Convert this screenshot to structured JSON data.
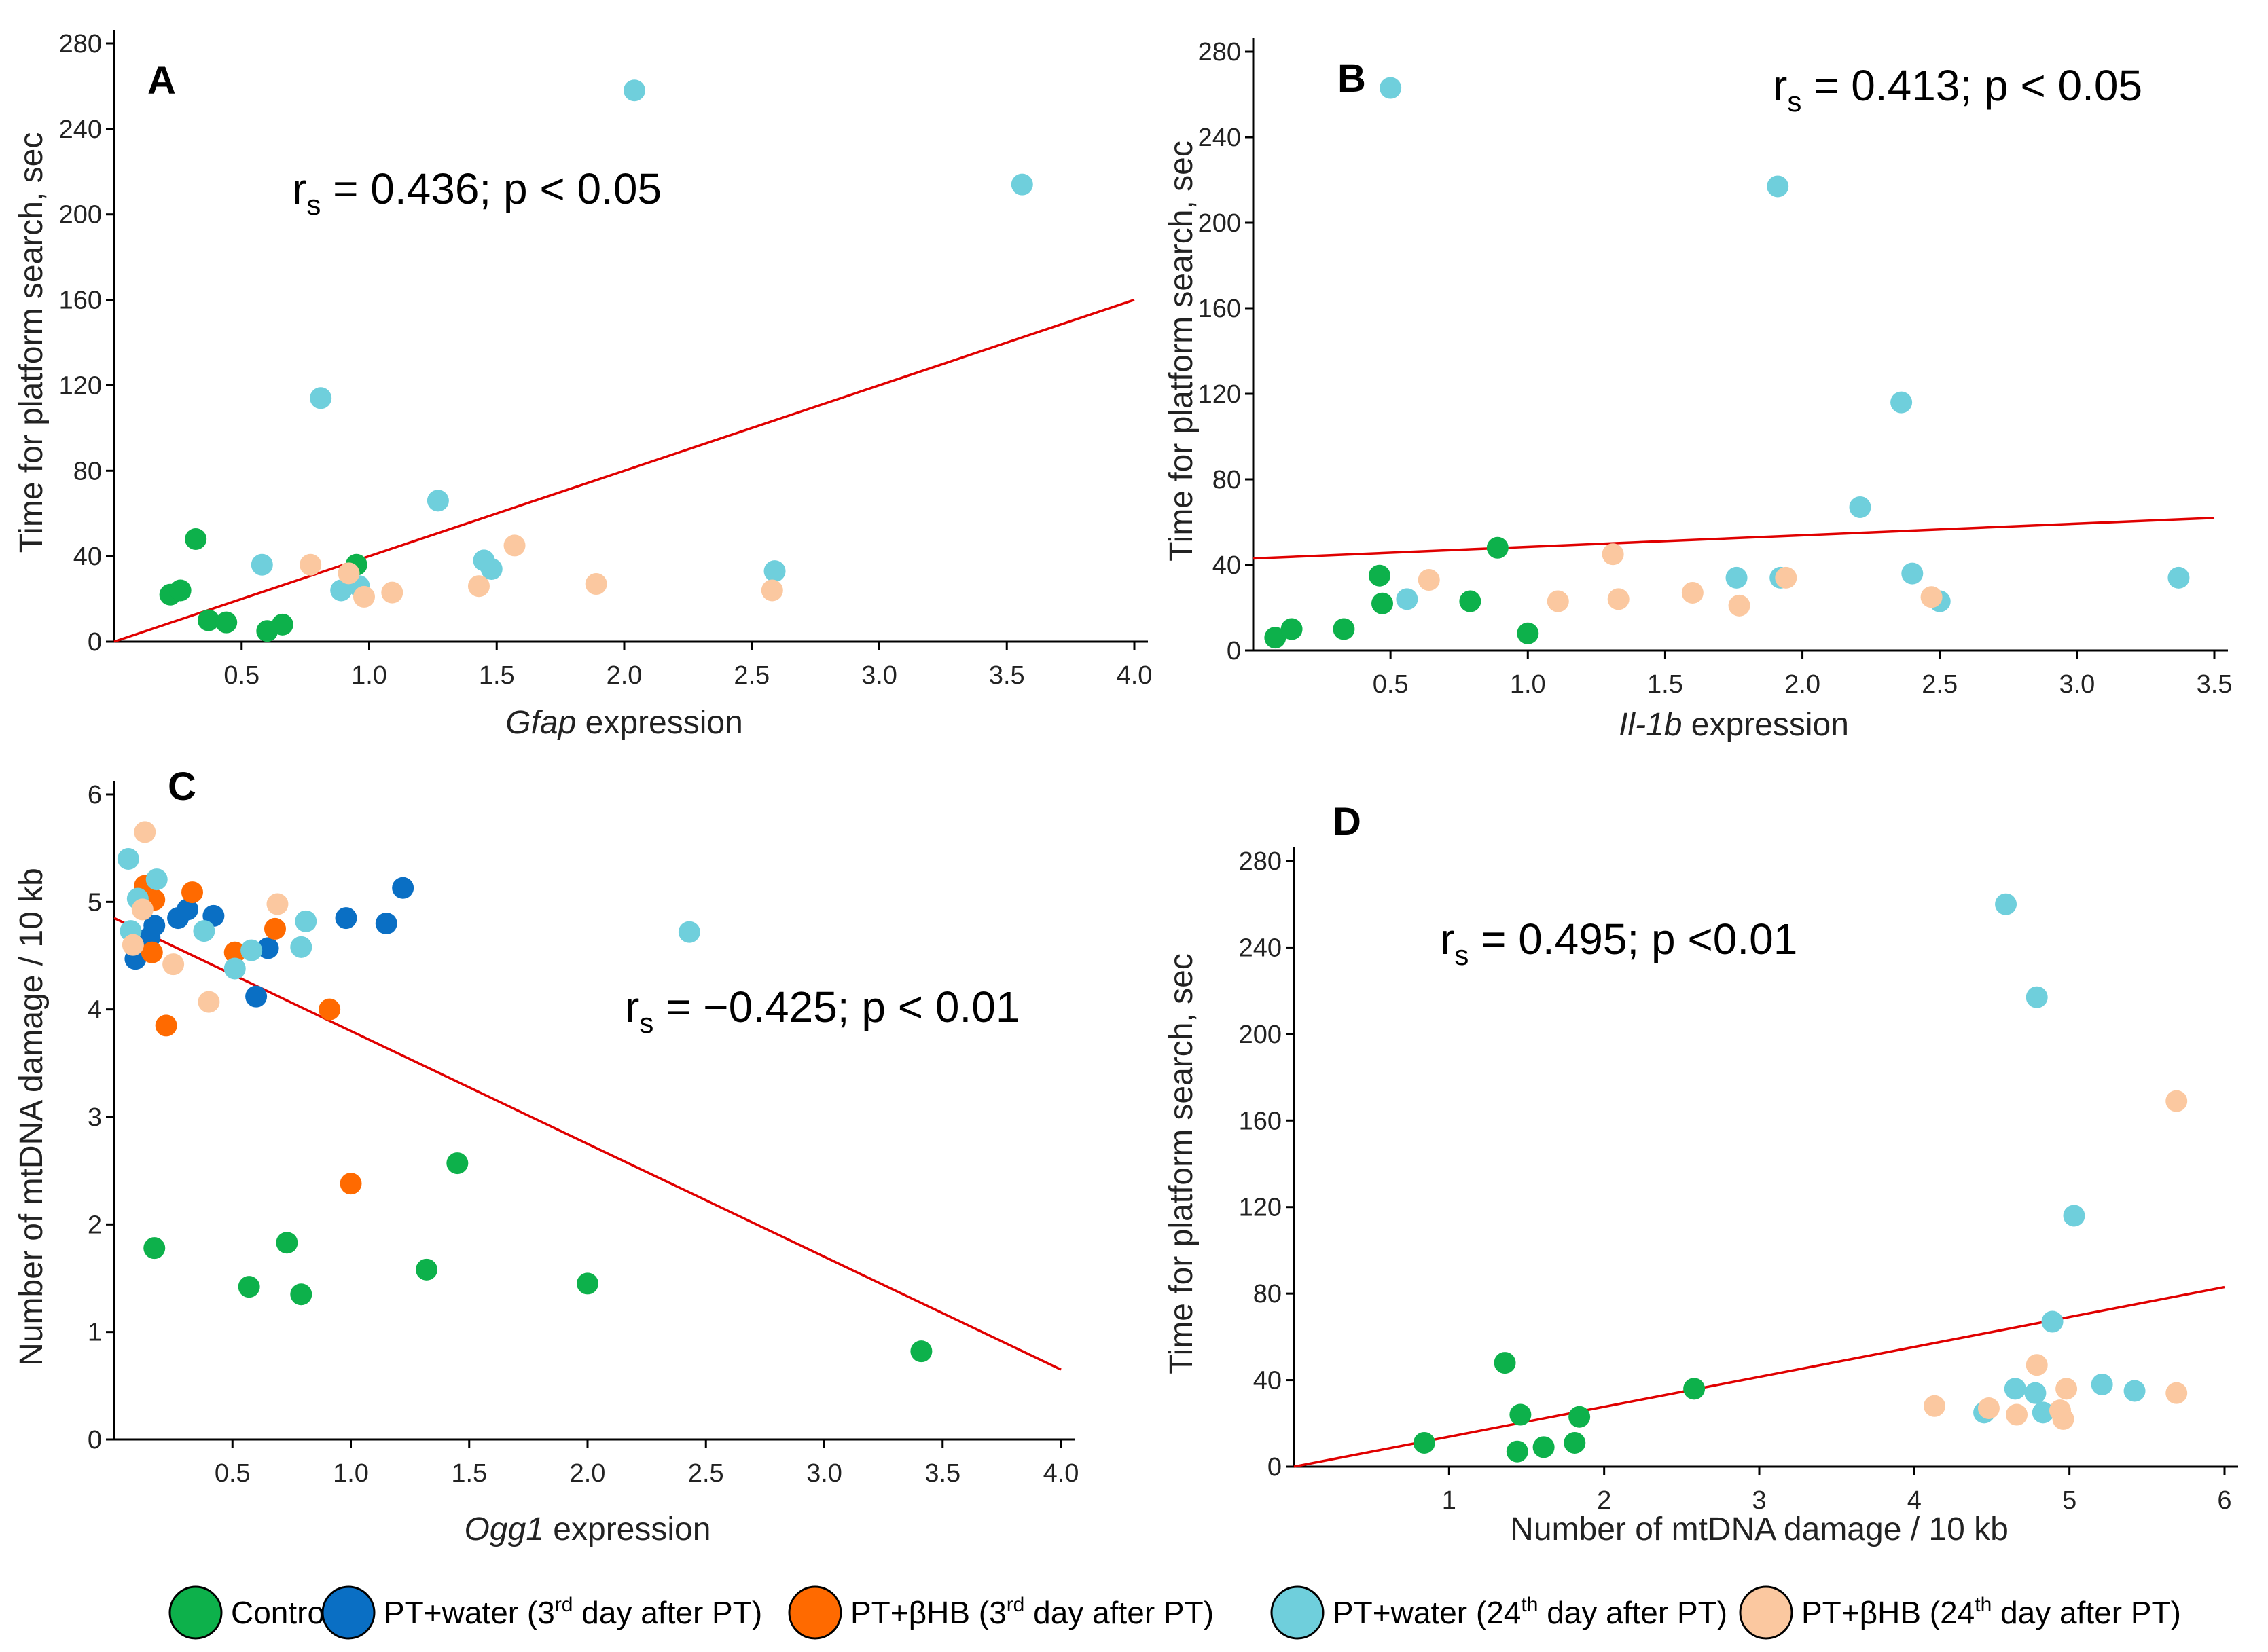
{
  "colors": {
    "Control": "#0db14b",
    "PT3": "#0a6fc4",
    "BHB3": "#ff6a00",
    "PT24": "#6fcfdc",
    "BHB24": "#fbc8a0",
    "trend": "#e00000"
  },
  "legend": [
    {
      "group": "Control",
      "label": "Control",
      "sup": "",
      "suffix": ""
    },
    {
      "group": "PT3",
      "label": "PT+water (3",
      "sup": "rd",
      "suffix": " day after PT)"
    },
    {
      "group": "BHB3",
      "label": "PT+βHB (3",
      "sup": "rd",
      "suffix": " day after PT)"
    },
    {
      "group": "PT24",
      "label": "PT+water (24",
      "sup": "th",
      "suffix": " day after PT)"
    },
    {
      "group": "BHB24",
      "label": "PT+βHB (24",
      "sup": "th",
      "suffix": " day after PT)"
    }
  ],
  "chart_data": [
    {
      "panel": "A",
      "type": "scatter",
      "xlabel_italic": "Gfap",
      "xlabel_rest": " expression",
      "ylabel": "Time for platform search, sec",
      "xlim": [
        0,
        4.0
      ],
      "ylim": [
        0,
        280
      ],
      "xticks": [
        "0.5",
        "1.0",
        "1.5",
        "2.0",
        "2.5",
        "3.0",
        "3.5",
        "4.0"
      ],
      "xtick_values": [
        0.5,
        1.0,
        1.5,
        2.0,
        2.5,
        3.0,
        3.5,
        4.0
      ],
      "yticks": [
        0,
        40,
        80,
        120,
        160,
        200,
        240,
        280
      ],
      "stat": {
        "pre": "r",
        "sub": "s",
        "post": " = 0.436; p < 0.05"
      },
      "trend": [
        [
          0,
          0
        ],
        [
          4.0,
          160
        ]
      ],
      "points": [
        {
          "g": "Control",
          "x": 0.22,
          "y": 22
        },
        {
          "g": "Control",
          "x": 0.26,
          "y": 24
        },
        {
          "g": "Control",
          "x": 0.32,
          "y": 48
        },
        {
          "g": "Control",
          "x": 0.37,
          "y": 10
        },
        {
          "g": "Control",
          "x": 0.44,
          "y": 9
        },
        {
          "g": "Control",
          "x": 0.6,
          "y": 5
        },
        {
          "g": "Control",
          "x": 0.66,
          "y": 8
        },
        {
          "g": "Control",
          "x": 0.95,
          "y": 36
        },
        {
          "g": "PT24",
          "x": 0.58,
          "y": 36
        },
        {
          "g": "PT24",
          "x": 0.81,
          "y": 114
        },
        {
          "g": "PT24",
          "x": 0.89,
          "y": 24
        },
        {
          "g": "PT24",
          "x": 0.96,
          "y": 26
        },
        {
          "g": "PT24",
          "x": 1.27,
          "y": 66
        },
        {
          "g": "PT24",
          "x": 1.45,
          "y": 38
        },
        {
          "g": "PT24",
          "x": 1.48,
          "y": 34
        },
        {
          "g": "PT24",
          "x": 2.04,
          "y": 258
        },
        {
          "g": "PT24",
          "x": 2.59,
          "y": 33
        },
        {
          "g": "PT24",
          "x": 3.56,
          "y": 214
        },
        {
          "g": "BHB24",
          "x": 0.77,
          "y": 36
        },
        {
          "g": "BHB24",
          "x": 0.92,
          "y": 32
        },
        {
          "g": "BHB24",
          "x": 0.98,
          "y": 21
        },
        {
          "g": "BHB24",
          "x": 1.09,
          "y": 23
        },
        {
          "g": "BHB24",
          "x": 1.43,
          "y": 26
        },
        {
          "g": "BHB24",
          "x": 1.57,
          "y": 45
        },
        {
          "g": "BHB24",
          "x": 1.89,
          "y": 27
        },
        {
          "g": "BHB24",
          "x": 2.58,
          "y": 24
        }
      ]
    },
    {
      "panel": "B",
      "type": "scatter",
      "xlabel_italic": "Il-1b",
      "xlabel_rest": " expression",
      "ylabel": "Time for platform search, sec",
      "xlim": [
        0,
        3.5
      ],
      "ylim": [
        0,
        280
      ],
      "xticks": [
        "0.5",
        "1.0",
        "1.5",
        "2.0",
        "2.5",
        "3.0",
        "3.5"
      ],
      "xtick_values": [
        0.5,
        1.0,
        1.5,
        2.0,
        2.5,
        3.0,
        3.5
      ],
      "yticks": [
        0,
        40,
        80,
        120,
        160,
        200,
        240,
        280
      ],
      "stat": {
        "pre": "r",
        "sub": "s",
        "post": " = 0.413; p < 0.05"
      },
      "trend": [
        [
          0,
          43
        ],
        [
          3.5,
          62
        ]
      ],
      "points": [
        {
          "g": "Control",
          "x": 0.08,
          "y": 6
        },
        {
          "g": "Control",
          "x": 0.14,
          "y": 10
        },
        {
          "g": "Control",
          "x": 0.33,
          "y": 10
        },
        {
          "g": "Control",
          "x": 0.46,
          "y": 35
        },
        {
          "g": "Control",
          "x": 0.47,
          "y": 22
        },
        {
          "g": "Control",
          "x": 0.79,
          "y": 23
        },
        {
          "g": "Control",
          "x": 0.89,
          "y": 48
        },
        {
          "g": "Control",
          "x": 1.0,
          "y": 8
        },
        {
          "g": "PT24",
          "x": 0.5,
          "y": 263
        },
        {
          "g": "PT24",
          "x": 0.56,
          "y": 24
        },
        {
          "g": "PT24",
          "x": 1.76,
          "y": 34
        },
        {
          "g": "PT24",
          "x": 1.91,
          "y": 217
        },
        {
          "g": "PT24",
          "x": 1.92,
          "y": 34
        },
        {
          "g": "PT24",
          "x": 2.21,
          "y": 67
        },
        {
          "g": "PT24",
          "x": 2.36,
          "y": 116
        },
        {
          "g": "PT24",
          "x": 2.4,
          "y": 36
        },
        {
          "g": "PT24",
          "x": 2.5,
          "y": 23
        },
        {
          "g": "PT24",
          "x": 3.37,
          "y": 34
        },
        {
          "g": "BHB24",
          "x": 0.64,
          "y": 33
        },
        {
          "g": "BHB24",
          "x": 1.11,
          "y": 23
        },
        {
          "g": "BHB24",
          "x": 1.31,
          "y": 45
        },
        {
          "g": "BHB24",
          "x": 1.33,
          "y": 24
        },
        {
          "g": "BHB24",
          "x": 1.6,
          "y": 27
        },
        {
          "g": "BHB24",
          "x": 1.77,
          "y": 21
        },
        {
          "g": "BHB24",
          "x": 1.94,
          "y": 34
        },
        {
          "g": "BHB24",
          "x": 2.47,
          "y": 25
        }
      ]
    },
    {
      "panel": "C",
      "type": "scatter",
      "xlabel_italic": "Ogg1",
      "xlabel_rest": " expression",
      "ylabel": "Number of mtDNA damage / 10 kb",
      "xlim": [
        0,
        4.0
      ],
      "ylim": [
        0,
        6
      ],
      "xticks": [
        "0.5",
        "1.0",
        "1.5",
        "2.0",
        "2.5",
        "3.0",
        "3.5",
        "4.0"
      ],
      "xtick_values": [
        0.5,
        1.0,
        1.5,
        2.0,
        2.5,
        3.0,
        3.5,
        4.0
      ],
      "yticks": [
        0,
        1,
        2,
        3,
        4,
        5,
        6
      ],
      "stat": {
        "pre": "r",
        "sub": "s",
        "post": " = −0.425; p < 0.01"
      },
      "trend": [
        [
          0,
          4.85
        ],
        [
          4.0,
          0.65
        ]
      ],
      "points": [
        {
          "g": "Control",
          "x": 0.17,
          "y": 1.78
        },
        {
          "g": "Control",
          "x": 0.57,
          "y": 1.42
        },
        {
          "g": "Control",
          "x": 0.73,
          "y": 1.83
        },
        {
          "g": "Control",
          "x": 0.79,
          "y": 1.35
        },
        {
          "g": "Control",
          "x": 1.32,
          "y": 1.58
        },
        {
          "g": "Control",
          "x": 1.45,
          "y": 2.57
        },
        {
          "g": "Control",
          "x": 2.0,
          "y": 1.45
        },
        {
          "g": "Control",
          "x": 3.41,
          "y": 0.82
        },
        {
          "g": "PT3",
          "x": 0.09,
          "y": 4.47
        },
        {
          "g": "PT3",
          "x": 0.15,
          "y": 4.67
        },
        {
          "g": "PT3",
          "x": 0.17,
          "y": 4.78
        },
        {
          "g": "PT3",
          "x": 0.27,
          "y": 4.85
        },
        {
          "g": "PT3",
          "x": 0.31,
          "y": 4.93
        },
        {
          "g": "PT3",
          "x": 0.42,
          "y": 4.87
        },
        {
          "g": "PT3",
          "x": 0.6,
          "y": 4.12
        },
        {
          "g": "PT3",
          "x": 0.65,
          "y": 4.57
        },
        {
          "g": "PT3",
          "x": 0.98,
          "y": 4.85
        },
        {
          "g": "PT3",
          "x": 1.15,
          "y": 4.8
        },
        {
          "g": "PT3",
          "x": 1.22,
          "y": 5.13
        },
        {
          "g": "BHB3",
          "x": 0.13,
          "y": 5.15
        },
        {
          "g": "BHB3",
          "x": 0.17,
          "y": 5.02
        },
        {
          "g": "BHB3",
          "x": 0.16,
          "y": 4.53
        },
        {
          "g": "BHB3",
          "x": 0.22,
          "y": 3.85
        },
        {
          "g": "BHB3",
          "x": 0.33,
          "y": 5.09
        },
        {
          "g": "BHB3",
          "x": 0.51,
          "y": 4.53
        },
        {
          "g": "BHB3",
          "x": 0.68,
          "y": 4.75
        },
        {
          "g": "BHB3",
          "x": 0.91,
          "y": 4.0
        },
        {
          "g": "BHB3",
          "x": 1.0,
          "y": 2.38
        },
        {
          "g": "PT24",
          "x": 0.06,
          "y": 5.4
        },
        {
          "g": "PT24",
          "x": 0.07,
          "y": 4.73
        },
        {
          "g": "PT24",
          "x": 0.1,
          "y": 5.03
        },
        {
          "g": "PT24",
          "x": 0.18,
          "y": 5.21
        },
        {
          "g": "PT24",
          "x": 0.38,
          "y": 4.73
        },
        {
          "g": "PT24",
          "x": 0.51,
          "y": 4.38
        },
        {
          "g": "PT24",
          "x": 0.58,
          "y": 4.55
        },
        {
          "g": "PT24",
          "x": 0.79,
          "y": 4.58
        },
        {
          "g": "PT24",
          "x": 0.81,
          "y": 4.82
        },
        {
          "g": "PT24",
          "x": 2.43,
          "y": 4.72
        },
        {
          "g": "BHB24",
          "x": 0.13,
          "y": 5.65
        },
        {
          "g": "BHB24",
          "x": 0.12,
          "y": 4.93
        },
        {
          "g": "BHB24",
          "x": 0.08,
          "y": 4.6
        },
        {
          "g": "BHB24",
          "x": 0.25,
          "y": 4.42
        },
        {
          "g": "BHB24",
          "x": 0.4,
          "y": 4.07
        },
        {
          "g": "BHB24",
          "x": 0.69,
          "y": 4.98
        }
      ]
    },
    {
      "panel": "D",
      "type": "scatter",
      "xlabel_italic": "",
      "xlabel_rest": "Number of mtDNA damage / 10 kb",
      "ylabel": "Time for platform search, sec",
      "xlim": [
        0,
        6
      ],
      "ylim": [
        0,
        280
      ],
      "xticks": [
        "1",
        "2",
        "3",
        "4",
        "5",
        "6"
      ],
      "xtick_values": [
        1,
        2,
        3,
        4,
        5,
        6
      ],
      "yticks": [
        0,
        40,
        80,
        120,
        160,
        200,
        240,
        280
      ],
      "stat": {
        "pre": "r",
        "sub": "s",
        "post": " = 0.495; p <0.01"
      },
      "trend": [
        [
          0,
          0
        ],
        [
          6,
          83
        ]
      ],
      "points": [
        {
          "g": "Control",
          "x": 0.84,
          "y": 11
        },
        {
          "g": "Control",
          "x": 1.36,
          "y": 48
        },
        {
          "g": "Control",
          "x": 1.44,
          "y": 7
        },
        {
          "g": "Control",
          "x": 1.46,
          "y": 24
        },
        {
          "g": "Control",
          "x": 1.61,
          "y": 9
        },
        {
          "g": "Control",
          "x": 1.81,
          "y": 11
        },
        {
          "g": "Control",
          "x": 1.84,
          "y": 23
        },
        {
          "g": "Control",
          "x": 2.58,
          "y": 36
        },
        {
          "g": "PT24",
          "x": 4.45,
          "y": 25
        },
        {
          "g": "PT24",
          "x": 4.59,
          "y": 260
        },
        {
          "g": "PT24",
          "x": 4.65,
          "y": 36
        },
        {
          "g": "PT24",
          "x": 4.78,
          "y": 34
        },
        {
          "g": "PT24",
          "x": 4.79,
          "y": 217
        },
        {
          "g": "PT24",
          "x": 4.83,
          "y": 25
        },
        {
          "g": "PT24",
          "x": 4.89,
          "y": 67
        },
        {
          "g": "PT24",
          "x": 5.03,
          "y": 116
        },
        {
          "g": "PT24",
          "x": 5.21,
          "y": 38
        },
        {
          "g": "PT24",
          "x": 5.42,
          "y": 35
        },
        {
          "g": "BHB24",
          "x": 4.13,
          "y": 28
        },
        {
          "g": "BHB24",
          "x": 4.48,
          "y": 27
        },
        {
          "g": "BHB24",
          "x": 4.66,
          "y": 24
        },
        {
          "g": "BHB24",
          "x": 4.79,
          "y": 47
        },
        {
          "g": "BHB24",
          "x": 4.94,
          "y": 26
        },
        {
          "g": "BHB24",
          "x": 4.96,
          "y": 22
        },
        {
          "g": "BHB24",
          "x": 4.98,
          "y": 36
        },
        {
          "g": "BHB24",
          "x": 5.69,
          "y": 34
        },
        {
          "g": "BHB24",
          "x": 5.69,
          "y": 169
        }
      ]
    }
  ]
}
